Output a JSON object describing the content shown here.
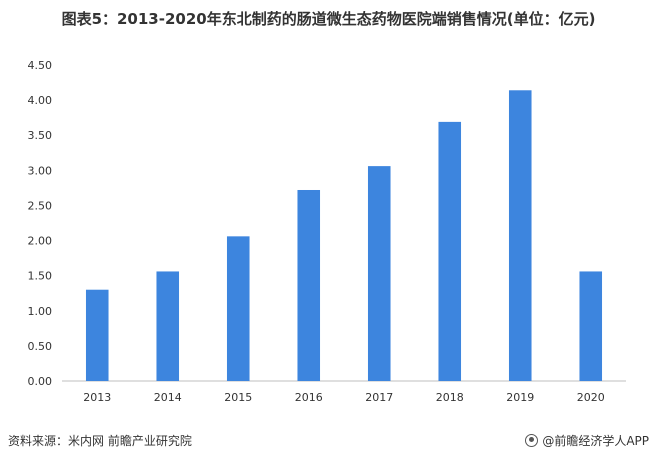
{
  "title": "图表5：2013-2020年东北制药的肠道微生态药物医院端销售情况(单位：亿元)",
  "footer": {
    "source": "资料来源：米内网 前瞻产业研究院",
    "brand": "@前瞻经济学人APP"
  },
  "colors": {
    "bar": "#3d85de",
    "axis": "#bfbfbf"
  },
  "chart_data": {
    "type": "bar",
    "title": "图表5：2013-2020年东北制药的肠道微生态药物医院端销售情况(单位：亿元)",
    "categories": [
      "2013",
      "2014",
      "2015",
      "2016",
      "2017",
      "2018",
      "2019",
      "2020"
    ],
    "values": [
      1.3,
      1.56,
      2.06,
      2.72,
      3.06,
      3.69,
      4.14,
      1.56
    ],
    "yticks": [
      "0.00",
      "0.50",
      "1.00",
      "1.50",
      "2.00",
      "2.50",
      "3.00",
      "3.50",
      "4.00",
      "4.50"
    ],
    "ylim": [
      0,
      4.5
    ],
    "xlabel": "",
    "ylabel": "",
    "grid": false,
    "legend": "none"
  }
}
